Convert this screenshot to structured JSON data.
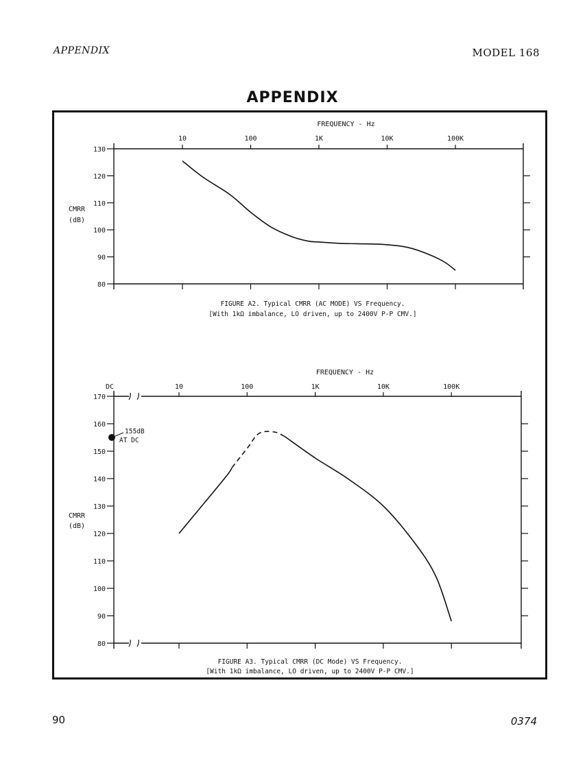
{
  "header": {
    "left": "APPENDIX",
    "right": "MODEL 168"
  },
  "title": "APPENDIX",
  "footer": {
    "page": "90",
    "code": "0374"
  },
  "chart_data": [
    {
      "type": "line",
      "x_axis_label": "FREQUENCY - Hz",
      "x_scale": "log",
      "x_ticks": [
        {
          "v": 10,
          "label": "10"
        },
        {
          "v": 100,
          "label": "100"
        },
        {
          "v": 1000,
          "label": "1K"
        },
        {
          "v": 10000,
          "label": "10K"
        },
        {
          "v": 100000,
          "label": "100K"
        }
      ],
      "xlim": [
        1,
        1000000
      ],
      "ylabel": [
        "CMRR",
        "(dB)"
      ],
      "ylim": [
        80,
        130
      ],
      "y_ticks": [
        80,
        90,
        100,
        110,
        120,
        130
      ],
      "caption": [
        "FIGURE A2.  Typical CMRR (AC MODE) VS Frequency.",
        "[With 1kΩ imbalance, LO driven, up to 2400V P-P CMV.]"
      ],
      "series": [
        {
          "style": "solid",
          "x": [
            10,
            20,
            50,
            100,
            200,
            400,
            700,
            1000,
            2000,
            5000,
            10000,
            20000,
            40000,
            70000,
            100000
          ],
          "y": [
            125.5,
            119.5,
            113,
            106.5,
            101,
            97.5,
            95.8,
            95.5,
            95,
            94.8,
            94.5,
            93.5,
            91,
            88,
            85
          ]
        }
      ]
    },
    {
      "type": "line",
      "x_axis_label": "FREQUENCY - Hz",
      "x_scale": "log",
      "x_ticks": [
        {
          "v": "DC",
          "label": "DC"
        },
        {
          "v": 10,
          "label": "10"
        },
        {
          "v": 100,
          "label": "100"
        },
        {
          "v": 1000,
          "label": "1K"
        },
        {
          "v": 10000,
          "label": "10K"
        },
        {
          "v": 100000,
          "label": "100K"
        }
      ],
      "ylabel": [
        "CMRR",
        "(dB)"
      ],
      "ylim": [
        80,
        170
      ],
      "y_ticks": [
        80,
        90,
        100,
        110,
        120,
        130,
        140,
        150,
        160,
        170
      ],
      "annotation": {
        "text": [
          "155dB",
          "AT DC"
        ],
        "x": "DC",
        "y": 155
      },
      "caption": [
        "FIGURE A3.  Typical CMRR (DC Mode) VS Frequency.",
        "[With 1kΩ imbalance, LO driven, up to 2400V P-P CMV.]"
      ],
      "series": [
        {
          "style": "solid",
          "x": [
            10,
            20,
            50,
            60
          ],
          "y": [
            120,
            129,
            141,
            144
          ]
        },
        {
          "style": "dashed",
          "x": [
            60,
            100,
            150,
            250,
            350
          ],
          "y": [
            144,
            151,
            156.5,
            157,
            155.5
          ]
        },
        {
          "style": "solid",
          "x": [
            350,
            1000,
            3000,
            10000,
            30000,
            60000,
            100000
          ],
          "y": [
            155.5,
            147.5,
            140,
            130,
            116,
            104,
            88
          ]
        }
      ]
    }
  ]
}
